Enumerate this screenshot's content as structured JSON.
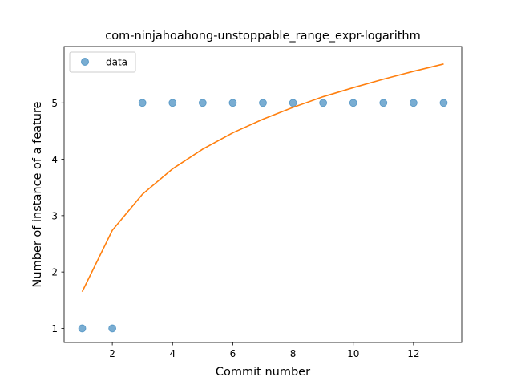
{
  "chart_data": {
    "type": "scatter",
    "title": "com-ninjahoahong-unstoppable_range_expr-logarithm",
    "xlabel": "Commit number",
    "ylabel": "Number of instance of a feature",
    "xlim": [
      0.4,
      13.6
    ],
    "ylim": [
      0.75,
      6.0
    ],
    "xticks": [
      2,
      4,
      6,
      8,
      10,
      12
    ],
    "yticks": [
      1,
      2,
      3,
      4,
      5
    ],
    "grid": false,
    "legend": {
      "placement": "upper-left",
      "entries": [
        "data"
      ]
    },
    "series": [
      {
        "name": "data",
        "kind": "scatter",
        "color": "#1f77b4",
        "x": [
          1,
          2,
          3,
          4,
          5,
          6,
          7,
          8,
          9,
          10,
          11,
          12,
          13
        ],
        "y": [
          1,
          1,
          5,
          5,
          5,
          5,
          5,
          5,
          5,
          5,
          5,
          5,
          5
        ]
      },
      {
        "kind": "line",
        "color": "#ff7f0e",
        "x": [
          1,
          2,
          3,
          4,
          5,
          6,
          7,
          8,
          9,
          10,
          11,
          12,
          13
        ],
        "y": [
          1.65,
          2.74,
          3.38,
          3.83,
          4.18,
          4.47,
          4.71,
          4.92,
          5.11,
          5.27,
          5.42,
          5.56,
          5.69
        ]
      }
    ]
  }
}
